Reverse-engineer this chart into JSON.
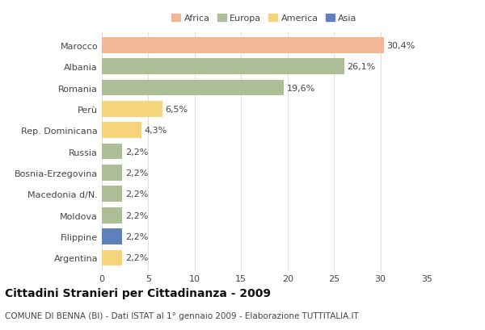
{
  "categories": [
    "Marocco",
    "Albania",
    "Romania",
    "Perù",
    "Rep. Dominicana",
    "Russia",
    "Bosnia-Erzegovina",
    "Macedonia d/N.",
    "Moldova",
    "Filippine",
    "Argentina"
  ],
  "values": [
    30.4,
    26.1,
    19.6,
    6.5,
    4.3,
    2.2,
    2.2,
    2.2,
    2.2,
    2.2,
    2.2
  ],
  "labels": [
    "30,4%",
    "26,1%",
    "19,6%",
    "6,5%",
    "4,3%",
    "2,2%",
    "2,2%",
    "2,2%",
    "2,2%",
    "2,2%",
    "2,2%"
  ],
  "colors": [
    "#F2B896",
    "#ABBE96",
    "#ABBE96",
    "#F5D47A",
    "#F5D47A",
    "#ABBE96",
    "#ABBE96",
    "#ABBE96",
    "#ABBE96",
    "#6080BB",
    "#F5D47A"
  ],
  "legend": [
    {
      "label": "Africa",
      "color": "#F2B896"
    },
    {
      "label": "Europa",
      "color": "#ABBE96"
    },
    {
      "label": "America",
      "color": "#F5D47A"
    },
    {
      "label": "Asia",
      "color": "#6080BB"
    }
  ],
  "xlim": [
    0,
    35
  ],
  "xticks": [
    0,
    5,
    10,
    15,
    20,
    25,
    30,
    35
  ],
  "title": "Cittadini Stranieri per Cittadinanza - 2009",
  "subtitle": "COMUNE DI BENNA (BI) - Dati ISTAT al 1° gennaio 2009 - Elaborazione TUTTITALIA.IT",
  "bg_color": "#ffffff",
  "grid_color": "#e0e0e0",
  "bar_height": 0.75,
  "label_fontsize": 8,
  "tick_fontsize": 8,
  "title_fontsize": 10,
  "subtitle_fontsize": 7.5
}
